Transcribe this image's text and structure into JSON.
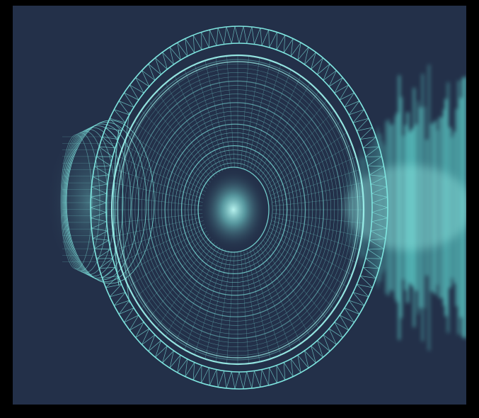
{
  "image": {
    "subject": "speaker-wireframe-icon",
    "secondary": "sound-wave-icon",
    "colors": {
      "border": "#000000",
      "background": "#233049",
      "wire": "#7fe6e0",
      "glow": "#9ff5ee",
      "wave": "#5fd8d2"
    }
  }
}
